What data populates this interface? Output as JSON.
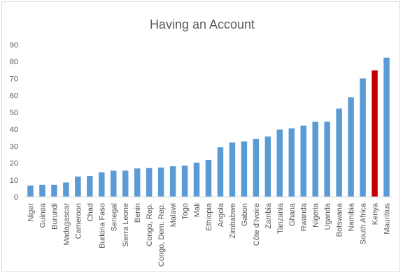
{
  "chart_data": {
    "type": "bar",
    "title": "Having an Account",
    "xlabel": "",
    "ylabel": "",
    "ylim": [
      0,
      90
    ],
    "yticks": [
      0,
      10,
      20,
      30,
      40,
      50,
      60,
      70,
      80,
      90
    ],
    "grid": false,
    "legend": "none",
    "bar_color": "#5b9bd5",
    "highlight_color": "#c00000",
    "highlight_category": "Kenya",
    "categories": [
      "Niger",
      "Guinea",
      "Burundi",
      "Madagascar",
      "Cameroon",
      "Chad",
      "Burkina Faso",
      "Senegal",
      "Sierra Leone",
      "Benin",
      "Congo, Rep.",
      "Congo, Dem. Rep.",
      "Malawi",
      "Togo",
      "Mali",
      "Ethiopia",
      "Angola",
      "Zimbabwe",
      "Gabon",
      "Côte d'Ivoire",
      "Zambia",
      "Tanzania",
      "Ghana",
      "Rwanda",
      "Nigeria",
      "Uganda",
      "Botswana",
      "Namibia",
      "South Africa",
      "Kenya",
      "Mauritius"
    ],
    "values": [
      6.7,
      7.1,
      7.1,
      8.5,
      12.0,
      12.4,
      14.5,
      15.5,
      15.5,
      16.8,
      17.0,
      17.3,
      18.1,
      18.4,
      20.2,
      21.9,
      29.3,
      32.1,
      32.8,
      34.3,
      35.7,
      39.8,
      40.5,
      42.1,
      44.4,
      44.4,
      52.2,
      58.9,
      70.0,
      74.8,
      82.3
    ]
  }
}
